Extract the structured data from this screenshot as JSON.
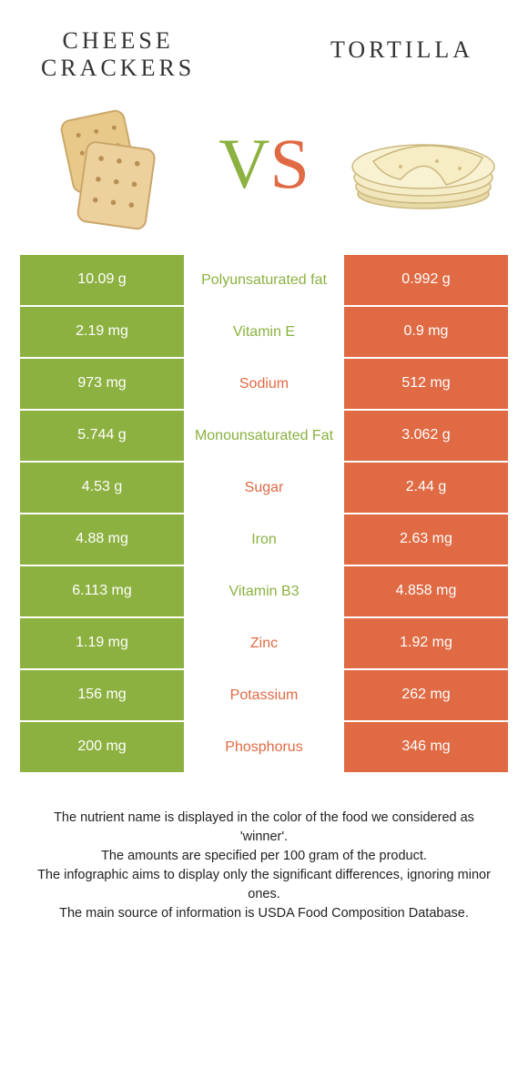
{
  "left": {
    "title_line1": "CHEESE",
    "title_line2": "CRACKERS",
    "color": "#8cb140"
  },
  "right": {
    "title": "TORTILLA",
    "color": "#e06a44"
  },
  "vs": {
    "v": "V",
    "s": "S"
  },
  "rows": [
    {
      "left": "10.09 g",
      "label": "Polyunsaturated fat",
      "right": "0.992 g",
      "winner": "left"
    },
    {
      "left": "2.19 mg",
      "label": "Vitamin E",
      "right": "0.9 mg",
      "winner": "left"
    },
    {
      "left": "973 mg",
      "label": "Sodium",
      "right": "512 mg",
      "winner": "right"
    },
    {
      "left": "5.744 g",
      "label": "Monounsaturated Fat",
      "right": "3.062 g",
      "winner": "left"
    },
    {
      "left": "4.53 g",
      "label": "Sugar",
      "right": "2.44 g",
      "winner": "right"
    },
    {
      "left": "4.88 mg",
      "label": "Iron",
      "right": "2.63 mg",
      "winner": "left"
    },
    {
      "left": "6.113 mg",
      "label": "Vitamin B3",
      "right": "4.858 mg",
      "winner": "left"
    },
    {
      "left": "1.19 mg",
      "label": "Zinc",
      "right": "1.92 mg",
      "winner": "right"
    },
    {
      "left": "156 mg",
      "label": "Potassium",
      "right": "262 mg",
      "winner": "right"
    },
    {
      "left": "200 mg",
      "label": "Phosphorus",
      "right": "346 mg",
      "winner": "right"
    }
  ],
  "footer": {
    "l1": "The nutrient name is displayed in the color of the food we considered as 'winner'.",
    "l2": "The amounts are specified per 100 gram of the product.",
    "l3": "The infographic aims to display only the significant differences, ignoring minor ones.",
    "l4": "The main source of information is USDA Food Composition Database."
  },
  "colors": {
    "green": "#8cb140",
    "orange": "#e06a44",
    "bg": "#ffffff"
  }
}
